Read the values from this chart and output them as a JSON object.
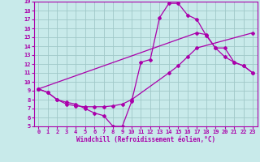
{
  "xlabel": "Windchill (Refroidissement éolien,°C)",
  "bg_color": "#c8eaea",
  "grid_color": "#a0c8c8",
  "line_color": "#aa00aa",
  "xlim": [
    -0.5,
    23.5
  ],
  "ylim": [
    5,
    19
  ],
  "xticks": [
    0,
    1,
    2,
    3,
    4,
    5,
    6,
    7,
    8,
    9,
    10,
    11,
    12,
    13,
    14,
    15,
    16,
    17,
    18,
    19,
    20,
    21,
    22,
    23
  ],
  "yticks": [
    5,
    6,
    7,
    8,
    9,
    10,
    11,
    12,
    13,
    14,
    15,
    16,
    17,
    18,
    19
  ],
  "line1_x": [
    0,
    1,
    2,
    3,
    4,
    5,
    6,
    7,
    8,
    9,
    10,
    14,
    15,
    16,
    17,
    23
  ],
  "line1_y": [
    9.2,
    8.8,
    8.0,
    7.5,
    7.3,
    7.2,
    7.2,
    7.2,
    7.3,
    7.5,
    8.0,
    11.0,
    11.8,
    12.8,
    13.8,
    15.5
  ],
  "line2_x": [
    0,
    1,
    2,
    3,
    4,
    5,
    6,
    7,
    8,
    9,
    10,
    11,
    12,
    13,
    14,
    15,
    16,
    17,
    18,
    19,
    20,
    21,
    22,
    23
  ],
  "line2_y": [
    9.2,
    8.8,
    8.0,
    7.7,
    7.5,
    7.0,
    6.5,
    6.2,
    5.0,
    5.0,
    7.8,
    12.2,
    12.5,
    17.2,
    18.8,
    18.8,
    17.5,
    17.0,
    15.2,
    13.8,
    12.8,
    12.2,
    11.8,
    11.0
  ],
  "line3_x": [
    0,
    17,
    18,
    19,
    20,
    21,
    22,
    23
  ],
  "line3_y": [
    9.2,
    15.5,
    15.3,
    13.8,
    13.8,
    12.2,
    11.8,
    11.0
  ]
}
